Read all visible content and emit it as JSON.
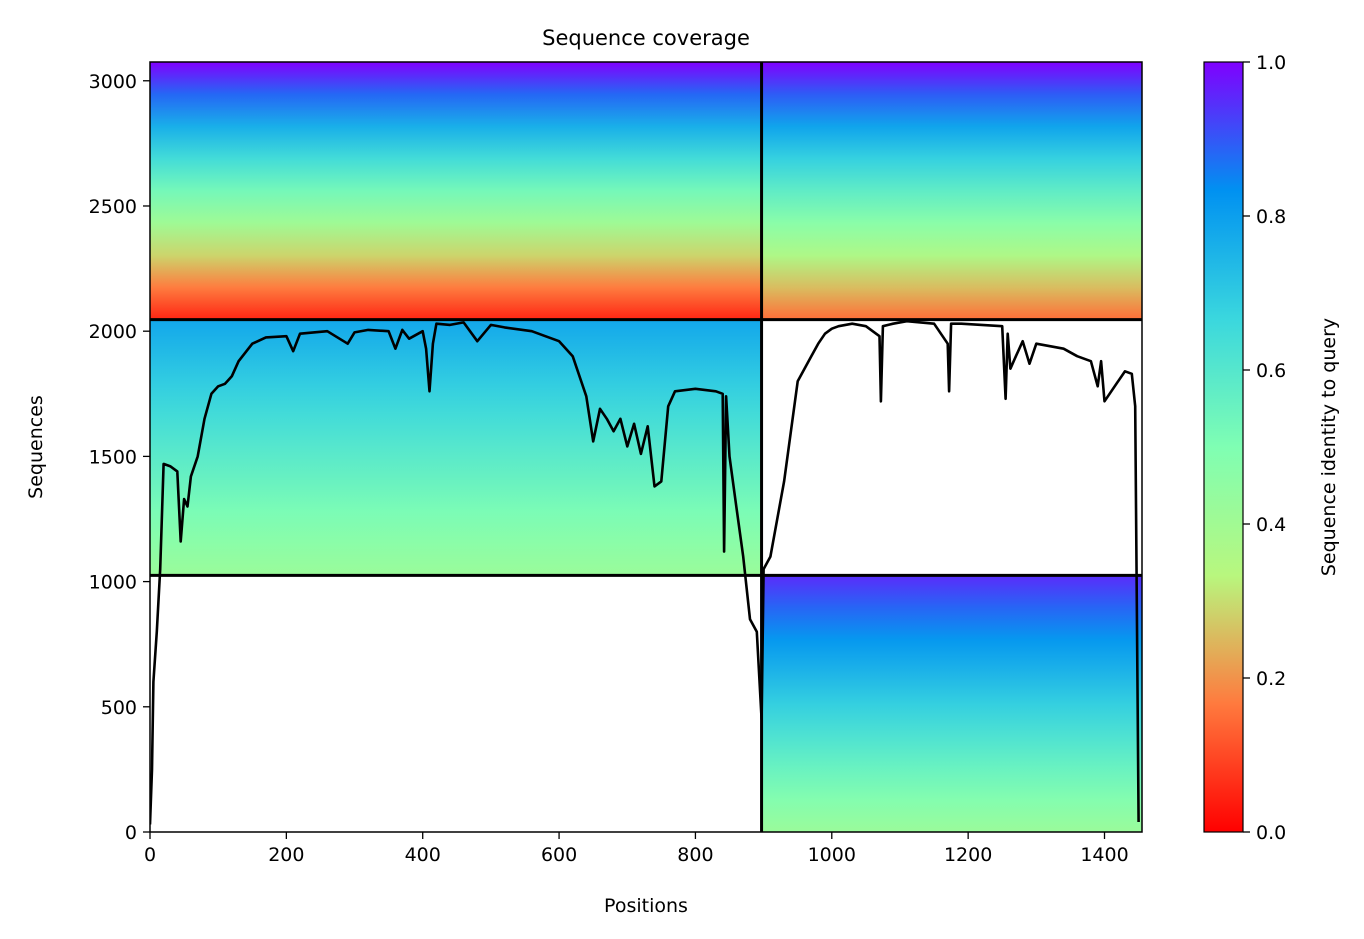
{
  "chart_data": {
    "type": "heatmap",
    "title": "Sequence coverage",
    "xlabel": "Positions",
    "ylabel": "Sequences",
    "colorbar_label": "Sequence identity to query",
    "xlim": [
      0,
      1455
    ],
    "ylim": [
      0,
      3075
    ],
    "xticks": [
      0,
      200,
      400,
      600,
      800,
      1000,
      1200,
      1400
    ],
    "yticks": [
      0,
      500,
      1000,
      1500,
      2000,
      2500,
      3000
    ],
    "colorbar_ticks": [
      0.0,
      0.2,
      0.4,
      0.6,
      0.8,
      1.0
    ],
    "colorbar_range": [
      0.0,
      1.0
    ],
    "colormap": [
      "#ff0000",
      "#ff7a3e",
      "#b8f77e",
      "#7ffeb3",
      "#3ad7de",
      "#0091f1",
      "#8000ff"
    ],
    "block_boundaries": {
      "x": [
        0,
        897,
        1455
      ],
      "y": [
        0,
        1025,
        2046,
        3075
      ]
    },
    "blocks": [
      {
        "id": "A",
        "x": [
          897,
          1455
        ],
        "y": [
          0,
          1025
        ],
        "identity_bottom": 0.42,
        "identity_top": 0.95
      },
      {
        "id": "B",
        "x": [
          0,
          897
        ],
        "y": [
          1025,
          2046
        ],
        "identity_bottom": 0.42,
        "identity_top": 0.78
      },
      {
        "id": "C",
        "x": [
          0,
          897
        ],
        "y": [
          2046,
          3075
        ],
        "identity_bottom": 0.05,
        "identity_top": 1.0
      },
      {
        "id": "D",
        "x": [
          897,
          1455
        ],
        "y": [
          2046,
          3075
        ],
        "identity_bottom": 0.15,
        "identity_top": 1.0
      }
    ],
    "coverage_line": {
      "x": [
        0,
        3,
        5,
        10,
        15,
        20,
        30,
        40,
        45,
        50,
        55,
        60,
        70,
        80,
        90,
        100,
        110,
        120,
        130,
        150,
        170,
        200,
        210,
        220,
        240,
        260,
        290,
        300,
        320,
        350,
        360,
        370,
        380,
        400,
        405,
        410,
        415,
        420,
        440,
        460,
        480,
        500,
        520,
        560,
        580,
        600,
        620,
        640,
        650,
        660,
        670,
        680,
        690,
        700,
        710,
        720,
        730,
        740,
        750,
        760,
        770,
        800,
        830,
        840,
        842,
        845,
        850,
        860,
        870,
        880,
        890,
        897,
        900,
        910,
        930,
        950,
        960,
        970,
        980,
        990,
        1000,
        1010,
        1030,
        1050,
        1070,
        1072,
        1075,
        1090,
        1110,
        1130,
        1150,
        1170,
        1172,
        1175,
        1190,
        1220,
        1250,
        1255,
        1258,
        1262,
        1270,
        1280,
        1290,
        1300,
        1320,
        1340,
        1360,
        1380,
        1390,
        1395,
        1400,
        1420,
        1430,
        1440,
        1445,
        1450
      ],
      "y": [
        30,
        250,
        600,
        800,
        1050,
        1470,
        1460,
        1440,
        1160,
        1330,
        1300,
        1420,
        1500,
        1650,
        1750,
        1780,
        1790,
        1820,
        1880,
        1950,
        1975,
        1980,
        1920,
        1990,
        1995,
        2000,
        1950,
        1995,
        2005,
        2000,
        1930,
        2005,
        1970,
        2000,
        1930,
        1760,
        1950,
        2030,
        2025,
        2035,
        1960,
        2025,
        2015,
        2000,
        1980,
        1960,
        1900,
        1740,
        1560,
        1690,
        1650,
        1600,
        1650,
        1540,
        1630,
        1510,
        1620,
        1380,
        1400,
        1700,
        1760,
        1770,
        1760,
        1750,
        1120,
        1740,
        1500,
        1300,
        1100,
        850,
        800,
        450,
        1050,
        1100,
        1400,
        1800,
        1850,
        1900,
        1950,
        1990,
        2010,
        2020,
        2030,
        2020,
        1980,
        1720,
        2020,
        2030,
        2040,
        2035,
        2030,
        1950,
        1760,
        2030,
        2030,
        2025,
        2020,
        1730,
        1990,
        1850,
        1900,
        1960,
        1870,
        1950,
        1940,
        1930,
        1900,
        1880,
        1780,
        1880,
        1720,
        1800,
        1840,
        1830,
        1700,
        40
      ]
    }
  }
}
